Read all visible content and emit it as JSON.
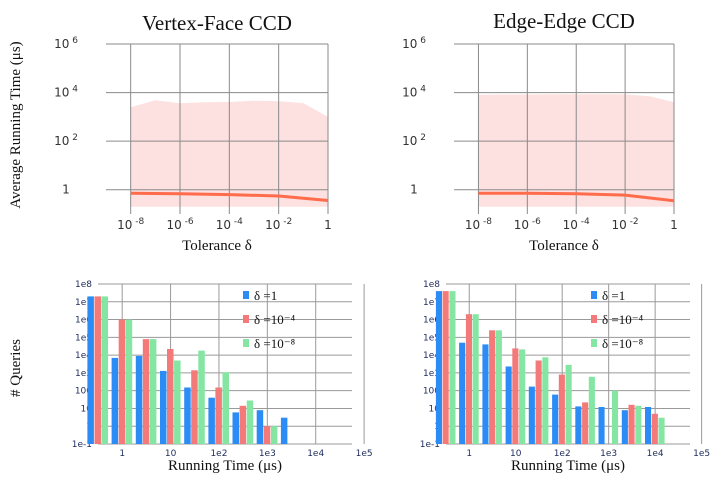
{
  "figure": {
    "ylabel_top": "Average Running Time (μs)",
    "ylabel_bottom": "# Queries",
    "xlabel_top": "Tolerance δ",
    "xlabel_bottom": "Running Time (μs)"
  },
  "chart_data": [
    {
      "type": "line",
      "title": "Vertex-Face CCD",
      "xlabel": "Tolerance δ",
      "ylabel": "Average Running Time (μs)",
      "xscale": "log",
      "yscale": "log",
      "xlim": [
        1e-09,
        1
      ],
      "ylim": [
        0.1,
        1000000
      ],
      "x_ticks": [
        "10 -8",
        "10 -6",
        "10 -4",
        "10 -2",
        "1"
      ],
      "y_ticks": [
        "10 6",
        "10 4",
        "10 2",
        "1"
      ],
      "series": [
        {
          "x": [
            1e-08,
            1e-06,
            0.0001,
            0.01,
            1
          ],
          "y": [
            0.72,
            0.68,
            0.63,
            0.55,
            0.36
          ],
          "color": "#ff6c4b"
        }
      ],
      "band": {
        "x": [
          1e-08,
          1e-07,
          1e-06,
          1e-05,
          0.0001,
          0.001,
          0.01,
          0.1,
          1
        ],
        "lower": [
          0.2,
          0.2,
          0.2,
          0.2,
          0.2,
          0.2,
          0.2,
          0.2,
          0.2
        ],
        "upper": [
          2500,
          4800,
          3600,
          4000,
          4100,
          4600,
          4400,
          3700,
          1000
        ],
        "color": "#fde0e0"
      },
      "grid": true
    },
    {
      "type": "line",
      "title": "Edge-Edge CCD",
      "xlabel": "Tolerance δ",
      "ylabel": "",
      "xscale": "log",
      "yscale": "log",
      "xlim": [
        1e-09,
        1
      ],
      "ylim": [
        0.1,
        1000000
      ],
      "x_ticks": [
        "10 -8",
        "10 -6",
        "10 -4",
        "10 -2",
        "1"
      ],
      "y_ticks": [
        "10 6",
        "10 4",
        "10 2",
        "1"
      ],
      "series": [
        {
          "x": [
            1e-08,
            1e-06,
            0.0001,
            0.01,
            1
          ],
          "y": [
            0.72,
            0.71,
            0.68,
            0.6,
            0.35
          ],
          "color": "#ff6c4b"
        }
      ],
      "band": {
        "x": [
          1e-08,
          1e-07,
          1e-06,
          1e-05,
          0.0001,
          0.001,
          0.01,
          0.1,
          1
        ],
        "lower": [
          0.2,
          0.2,
          0.2,
          0.2,
          0.2,
          0.2,
          0.2,
          0.2,
          0.2
        ],
        "upper": [
          8000,
          8300,
          8300,
          8400,
          8500,
          8500,
          8400,
          7000,
          4000
        ],
        "color": "#fde0e0"
      },
      "grid": true
    },
    {
      "type": "bar",
      "xlabel": "Running Time (μs)",
      "ylabel": "# Queries",
      "xscale": "log",
      "yscale": "log",
      "categories": [
        "1",
        "3",
        "10",
        "30",
        "1e2",
        "3e2",
        "1e3",
        "3e3",
        "1e4"
      ],
      "x_ticks": [
        "1",
        "10",
        "1e2",
        "1e3",
        "1e4",
        "1e5"
      ],
      "y_ticks": [
        "1e8",
        "1e7",
        "1e6",
        "1e5",
        "1e4",
        "1e3",
        "100",
        "10",
        "1",
        "1e-1"
      ],
      "series": [
        {
          "name": "δ =1",
          "color": "#2b8cf5",
          "values": [
            20000000,
            7000,
            9000,
            1300,
            150,
            40,
            6,
            8,
            3
          ]
        },
        {
          "name": "δ =10⁻⁴",
          "color": "#f47a7a",
          "values": [
            20000000,
            1000000,
            80000,
            22000,
            1400,
            150,
            14,
            1,
            null
          ]
        },
        {
          "name": "δ =10⁻⁸",
          "color": "#85e6a3",
          "values": [
            20000000,
            1000000,
            80000,
            5000,
            18000,
            1100,
            28,
            1,
            null
          ]
        }
      ],
      "legend": "right",
      "grid": true
    },
    {
      "type": "bar",
      "xlabel": "Running Time (μs)",
      "ylabel": "",
      "xscale": "log",
      "yscale": "log",
      "categories": [
        "1",
        "3",
        "10",
        "30",
        "1e2",
        "3e2",
        "1e3",
        "3e3",
        "1e4",
        "3e4"
      ],
      "x_ticks": [
        "1",
        "10",
        "1e2",
        "1e3",
        "1e4",
        "1e5"
      ],
      "y_ticks": [
        "1e8",
        "1e7",
        "1e6",
        "1e5",
        "1e4",
        "1e3",
        "100",
        "10",
        "1",
        "1e-1"
      ],
      "series": [
        {
          "name": "δ =1",
          "color": "#2b8cf5",
          "values": [
            40000000,
            50000,
            40000,
            2300,
            170,
            60,
            13,
            12,
            8,
            12
          ]
        },
        {
          "name": "δ =10⁻⁴",
          "color": "#f47a7a",
          "values": [
            40000000,
            2000000,
            250000,
            24000,
            5000,
            800,
            22,
            null,
            16,
            5
          ]
        },
        {
          "name": "δ =10⁻⁸",
          "color": "#85e6a3",
          "values": [
            40000000,
            2000000,
            250000,
            21000,
            7500,
            2800,
            600,
            100,
            14,
            3
          ]
        }
      ],
      "legend": "right",
      "grid": true
    }
  ]
}
